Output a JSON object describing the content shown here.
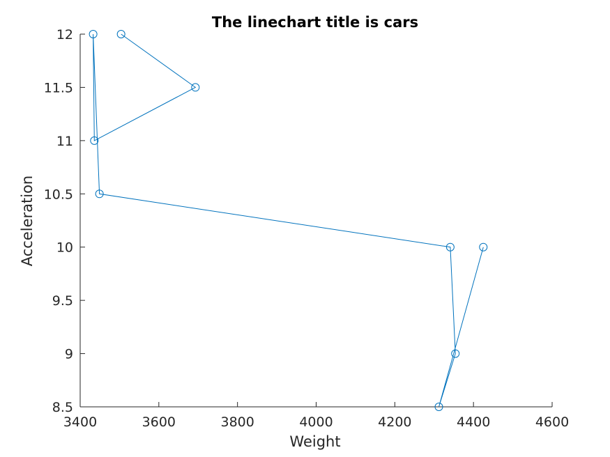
{
  "chart_data": {
    "type": "line",
    "title": "The linechart title is cars",
    "xlabel": "Weight",
    "ylabel": "Acceleration",
    "xlim": [
      3400,
      4600
    ],
    "ylim": [
      8.5,
      12
    ],
    "xticks": [
      "3400",
      "3600",
      "3800",
      "4000",
      "4200",
      "4400",
      "4600"
    ],
    "yticks": [
      "8.5",
      "9",
      "9.5",
      "10",
      "10.5",
      "11",
      "11.5",
      "12"
    ],
    "grid": false,
    "marker": "circle",
    "line_color": "#0072BD",
    "series": [
      {
        "x": [
          3504,
          3693,
          3436,
          3433,
          3449,
          4341,
          4354,
          4312,
          4425
        ],
        "y": [
          12,
          11.5,
          11,
          12,
          10.5,
          10,
          9,
          8.5,
          10
        ]
      }
    ]
  }
}
